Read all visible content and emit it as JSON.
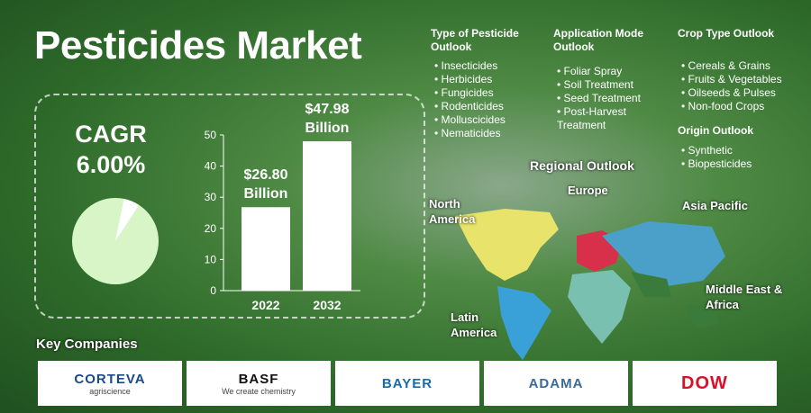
{
  "title": "Pesticides Market",
  "chart_data": [
    {
      "type": "pie",
      "title": "CAGR",
      "values": [
        6
      ],
      "value_labels": [
        "6.00%"
      ],
      "color": "#ffffff"
    },
    {
      "type": "bar",
      "categories": [
        "2022",
        "2032"
      ],
      "values": [
        26.8,
        47.98
      ],
      "value_labels": [
        "$26.80 Billion",
        "$47.98 Billion"
      ],
      "color": "#ffffff",
      "ylim": [
        0,
        50
      ],
      "yticks": [
        0,
        10,
        20,
        30,
        40,
        50
      ]
    }
  ],
  "outlooks": [
    {
      "title": "Type of Pesticide Outlook",
      "items": [
        "Insecticides",
        "Herbicides",
        "Fungicides",
        "Rodenticides",
        "Molluscicides",
        "Nematicides"
      ]
    },
    {
      "title": "Application Mode Outlook",
      "items": [
        "Foliar Spray",
        "Soil Treatment",
        "Seed Treatment",
        "Post-Harvest Treatment"
      ]
    },
    {
      "title": "Crop Type Outlook",
      "items": [
        "Cereals & Grains",
        "Fruits & Vegetables",
        "Oilseeds & Pulses",
        "Non-food Crops"
      ]
    },
    {
      "title": "Origin Outlook",
      "items": [
        "Synthetic",
        "Biopesticides"
      ]
    }
  ],
  "regional": {
    "title": "Regional Outlook",
    "regions": [
      "North America",
      "Europe",
      "Asia Pacific",
      "Latin America",
      "Middle East & Africa"
    ]
  },
  "companies": {
    "title": "Key Companies",
    "logos": [
      {
        "name": "CORTEVA",
        "tagline": "agriscience"
      },
      {
        "name": "BASF",
        "tagline": "We create chemistry"
      },
      {
        "name": "BAYER"
      },
      {
        "name": "ADAMA"
      },
      {
        "name": "DOW"
      }
    ]
  }
}
